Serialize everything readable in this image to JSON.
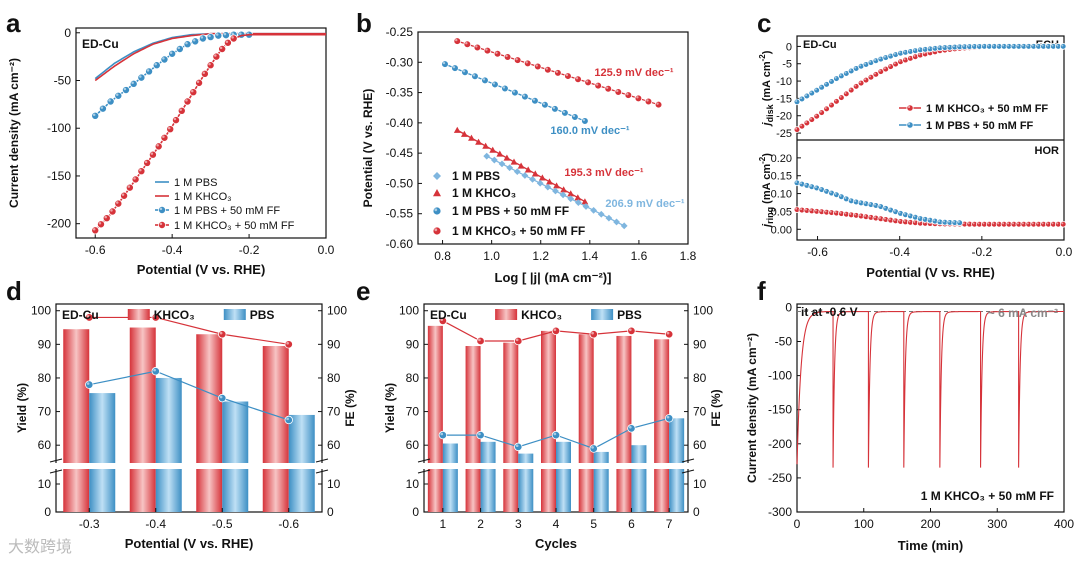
{
  "colors": {
    "red": "#d6333a",
    "blue": "#3d8fc4",
    "lightblue": "#7fb6df",
    "gray": "#888888"
  },
  "watermark": "大数跨境",
  "chart_data": [
    {
      "panel": "a",
      "type": "line",
      "annotation": "ED-Cu",
      "xlabel": "Potential (V vs. RHE)",
      "ylabel": "Current density (mA cm⁻²)",
      "xlim": [
        -0.65,
        0.0
      ],
      "ylim": [
        -215,
        5
      ],
      "xticks": [
        "-0.6",
        "-0.4",
        "-0.2",
        "0.0"
      ],
      "yticks": [
        "0",
        "-50",
        "-100",
        "-150",
        "-200"
      ],
      "legend": [
        "1 M PBS",
        "1 M KHCO₃",
        "1 M PBS + 50 mM FF",
        "1 M KHCO₃ + 50 mM FF"
      ],
      "series": [
        {
          "name": "1 M PBS",
          "color": "#3d8fc4",
          "marker": "none",
          "x": [
            -0.6,
            -0.55,
            -0.5,
            -0.45,
            -0.4,
            -0.35,
            -0.3,
            -0.25,
            -0.2,
            -0.1,
            0.0
          ],
          "y": [
            -48,
            -32,
            -20,
            -11,
            -5,
            -2,
            -1,
            -1,
            -1,
            -1,
            -1
          ]
        },
        {
          "name": "1 M KHCO₃",
          "color": "#d6333a",
          "marker": "none",
          "x": [
            -0.6,
            -0.55,
            -0.5,
            -0.45,
            -0.4,
            -0.35,
            -0.3,
            -0.25,
            -0.2,
            -0.1,
            0.0
          ],
          "y": [
            -50,
            -35,
            -22,
            -12,
            -6,
            -3,
            -1,
            -1,
            -1,
            -1,
            -1
          ]
        },
        {
          "name": "1 M PBS + 50 mM FF",
          "color": "#3d8fc4",
          "marker": "circle",
          "x": [
            -0.6,
            -0.56,
            -0.52,
            -0.48,
            -0.44,
            -0.4,
            -0.36,
            -0.32,
            -0.28,
            -0.24,
            -0.2
          ],
          "y": [
            -87,
            -72,
            -60,
            -47,
            -34,
            -22,
            -12,
            -6,
            -3,
            -2,
            -2
          ]
        },
        {
          "name": "1 M KHCO₃ + 50 mM FF",
          "color": "#d6333a",
          "marker": "circle",
          "x": [
            -0.6,
            -0.56,
            -0.52,
            -0.48,
            -0.44,
            -0.4,
            -0.36,
            -0.32,
            -0.3,
            -0.28,
            -0.26,
            -0.24,
            -0.22,
            -0.2,
            -0.15,
            -0.1,
            -0.05,
            0.0
          ],
          "y": [
            -207,
            -190,
            -168,
            -145,
            -122,
            -98,
            -72,
            -46,
            -34,
            -22,
            -12,
            -6,
            -3,
            -2,
            -2,
            -2,
            -2,
            -2
          ]
        }
      ]
    },
    {
      "panel": "b",
      "type": "scatter",
      "xlabel": "Log [ |j| (mA cm⁻²)]",
      "ylabel": "Potential (V vs. RHE)",
      "xlim": [
        0.7,
        1.8
      ],
      "ylim": [
        -0.6,
        -0.25
      ],
      "xticks": [
        "0.8",
        "1.0",
        "1.2",
        "1.4",
        "1.6",
        "1.8"
      ],
      "yticks": [
        "-0.25",
        "-0.30",
        "-0.35",
        "-0.40",
        "-0.45",
        "-0.50",
        "-0.55",
        "-0.60"
      ],
      "legend": [
        "1 M PBS",
        "1 M KHCO₃",
        "1 M PBS + 50 mM FF",
        "1 M KHCO₃ + 50 mM FF"
      ],
      "tafel_labels": [
        "125.9 mV dec⁻¹",
        "160.0 mV dec⁻¹",
        "195.3 mV dec⁻¹",
        "206.9 mV dec⁻¹"
      ],
      "series": [
        {
          "name": "1 M KHCO₃ + 50 mM FF",
          "color": "#d6333a",
          "marker": "circle",
          "x": [
            0.86,
            1.68
          ],
          "y": [
            -0.265,
            -0.37
          ],
          "slope": "125.9 mV dec⁻¹"
        },
        {
          "name": "1 M PBS + 50 mM FF",
          "color": "#3d8fc4",
          "marker": "circle",
          "x": [
            0.81,
            1.38
          ],
          "y": [
            -0.303,
            -0.397
          ],
          "slope": "160.0 mV dec⁻¹"
        },
        {
          "name": "1 M KHCO₃",
          "color": "#d6333a",
          "marker": "triangle",
          "x": [
            0.86,
            1.38
          ],
          "y": [
            -0.412,
            -0.53
          ],
          "slope": "195.3 mV dec⁻¹"
        },
        {
          "name": "1 M PBS",
          "color": "#7fb6df",
          "marker": "diamond",
          "x": [
            0.98,
            1.54
          ],
          "y": [
            -0.455,
            -0.57
          ],
          "slope": "206.9 mV dec⁻¹"
        }
      ]
    },
    {
      "panel": "c",
      "type": "line",
      "annotation": "ED-Cu",
      "top_tag": "ECH",
      "bottom_tag": "HOR",
      "xlabel": "Potential (V vs. RHE)",
      "ylabel_top": "j_disk (mA cm⁻²)",
      "ylabel_bottom": "j_ring (mA cm⁻²)",
      "ylabel_top_parts": [
        "j",
        "disk",
        " (mA cm",
        "-2",
        ")"
      ],
      "ylabel_bottom_parts": [
        "j",
        "ring",
        " (mA cm",
        "-2",
        ")"
      ],
      "xlim": [
        -0.65,
        0.0
      ],
      "xticks": [
        "-0.6",
        "-0.4",
        "-0.2",
        "0.0"
      ],
      "ylim_top": [
        -27,
        3
      ],
      "yticks_top": [
        "0",
        "-5",
        "-10",
        "-15",
        "-20",
        "-25"
      ],
      "ylim_bottom": [
        -0.03,
        0.25
      ],
      "yticks_bottom": [
        "0.20",
        "0.15",
        "0.10",
        "0.05",
        "0.00"
      ],
      "legend": [
        "1 M KHCO₃ + 50 mM FF",
        "1 M PBS + 50 mM FF"
      ],
      "disk_series": [
        {
          "name": "1 M KHCO₃ + 50 mM FF",
          "color": "#d6333a",
          "x": [
            -0.65,
            -0.6,
            -0.55,
            -0.5,
            -0.45,
            -0.4,
            -0.35,
            -0.3,
            -0.25,
            -0.2,
            -0.1,
            0.0
          ],
          "y": [
            -24,
            -20,
            -15.5,
            -11,
            -7.5,
            -4.5,
            -2.5,
            -1.2,
            -0.5,
            -0.2,
            0,
            0
          ]
        },
        {
          "name": "1 M PBS + 50 mM FF",
          "color": "#3d8fc4",
          "x": [
            -0.65,
            -0.6,
            -0.55,
            -0.5,
            -0.45,
            -0.4,
            -0.35,
            -0.3,
            -0.25,
            -0.2,
            -0.1,
            0.0
          ],
          "y": [
            -16,
            -12.5,
            -9,
            -6,
            -3.8,
            -2,
            -1,
            -0.4,
            -0.1,
            0,
            0,
            0
          ]
        }
      ],
      "ring_series": [
        {
          "name": "1 M KHCO₃ + 50 mM FF",
          "color": "#d6333a",
          "x": [
            -0.65,
            -0.6,
            -0.55,
            -0.5,
            -0.45,
            -0.4,
            -0.35,
            -0.3,
            -0.2,
            -0.1,
            0.0
          ],
          "y": [
            0.055,
            0.05,
            0.045,
            0.038,
            0.03,
            0.022,
            0.017,
            0.015,
            0.014,
            0.014,
            0.014
          ]
        },
        {
          "name": "1 M PBS + 50 mM FF",
          "color": "#3d8fc4",
          "x": [
            -0.65,
            -0.6,
            -0.55,
            -0.52,
            -0.5,
            -0.45,
            -0.4,
            -0.35,
            -0.3,
            -0.25
          ],
          "y": [
            0.13,
            0.115,
            0.095,
            0.08,
            0.075,
            0.065,
            0.045,
            0.03,
            0.02,
            0.018
          ]
        }
      ]
    },
    {
      "panel": "d",
      "type": "bar",
      "annotation": "ED-Cu",
      "xlabel": "Potential (V vs. RHE)",
      "ylabel": "Yield (%)",
      "ylabel2": "FE (%)",
      "categories": [
        "-0.3",
        "-0.4",
        "-0.5",
        "-0.6"
      ],
      "ylim_upper": [
        55,
        102
      ],
      "yticks": [
        "100",
        "90",
        "80",
        "70",
        "60",
        "10",
        "0"
      ],
      "ylim_lower": [
        0,
        15
      ],
      "legend": [
        "KHCO₃",
        "PBS"
      ],
      "series": [
        {
          "name": "KHCO₃",
          "color": "#d6333a",
          "values": [
            94.5,
            95,
            93,
            89.5
          ]
        },
        {
          "name": "PBS",
          "color": "#3d8fc4",
          "values": [
            75.5,
            80,
            73,
            69
          ]
        }
      ],
      "fe_series": [
        {
          "name": "KHCO₃ FE",
          "color": "#d6333a",
          "values": [
            98,
            98,
            93,
            90
          ]
        },
        {
          "name": "PBS FE",
          "color": "#3d8fc4",
          "values": [
            78,
            82,
            74,
            67.5
          ]
        }
      ]
    },
    {
      "panel": "e",
      "type": "bar",
      "annotation": "ED-Cu",
      "xlabel": "Cycles",
      "ylabel": "Yield (%)",
      "ylabel2": "FE (%)",
      "categories": [
        "1",
        "2",
        "3",
        "4",
        "5",
        "6",
        "7"
      ],
      "yticks": [
        "100",
        "90",
        "80",
        "70",
        "60",
        "10",
        "0"
      ],
      "legend": [
        "KHCO₃",
        "PBS"
      ],
      "series": [
        {
          "name": "KHCO₃",
          "color": "#d6333a",
          "values": [
            95.5,
            89.5,
            90.5,
            94,
            93,
            92.5,
            91.5
          ]
        },
        {
          "name": "PBS",
          "color": "#3d8fc4",
          "values": [
            60.5,
            61,
            57.5,
            61,
            58,
            60,
            68
          ]
        }
      ],
      "fe_series": [
        {
          "name": "KHCO₃ FE",
          "color": "#d6333a",
          "values": [
            97,
            91,
            91,
            94,
            93,
            94,
            93
          ]
        },
        {
          "name": "PBS FE",
          "color": "#3d8fc4",
          "values": [
            63,
            63,
            59.5,
            63,
            59,
            65,
            68
          ]
        }
      ]
    },
    {
      "panel": "f",
      "type": "line",
      "annotation_tl": "it at -0.6 V",
      "annotation_tr": "~ 6 mA cm⁻²",
      "annotation_br": "1 M KHCO₃ + 50 mM FF",
      "xlabel": "Time (min)",
      "ylabel": "Current density (mA cm⁻²)",
      "xlim": [
        0,
        400
      ],
      "ylim": [
        -300,
        5
      ],
      "xticks": [
        "0",
        "100",
        "200",
        "300",
        "400"
      ],
      "yticks": [
        "0",
        "-50",
        "-100",
        "-150",
        "-200",
        "-250",
        "-300"
      ],
      "spike_times": [
        0,
        54,
        107,
        160,
        214,
        275,
        332
      ],
      "spike_min": -235,
      "plateau": -6
    }
  ]
}
